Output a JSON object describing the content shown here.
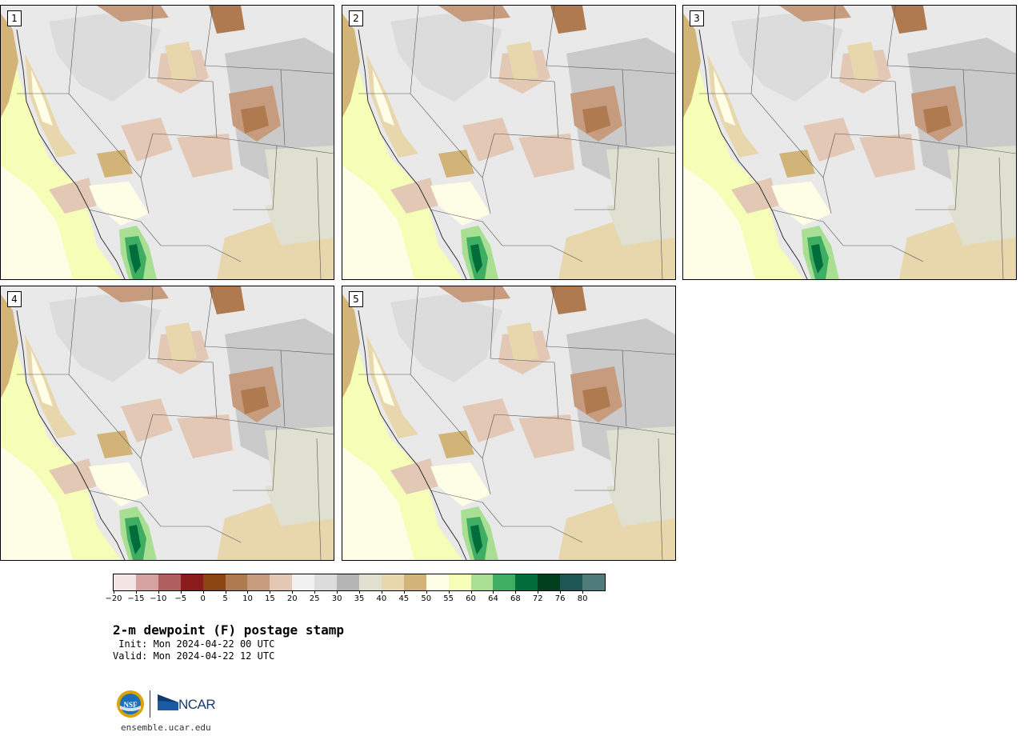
{
  "panels": [
    {
      "label": "1"
    },
    {
      "label": "2"
    },
    {
      "label": "3"
    },
    {
      "label": "4"
    },
    {
      "label": "5"
    }
  ],
  "colorbar": {
    "colors": [
      "#f4e4e4",
      "#d7a2a2",
      "#b15e5e",
      "#8b1a1a",
      "#8b4513",
      "#b07a50",
      "#c79c7e",
      "#e3c9b5",
      "#f1f1f1",
      "#dcdcdc",
      "#b5b5b5",
      "#e0e0d1",
      "#e8d7ad",
      "#d3b478",
      "#fefee6",
      "#f6fdb6",
      "#a9df93",
      "#3fae62",
      "#006d3a",
      "#00401f",
      "#1f5656",
      "#4f7b7b"
    ],
    "tick_labels": [
      "−20",
      "−15",
      "−10",
      "−5",
      "0",
      "5",
      "10",
      "15",
      "20",
      "25",
      "30",
      "35",
      "40",
      "45",
      "50",
      "55",
      "60",
      "64",
      "68",
      "72",
      "76",
      "80"
    ]
  },
  "title": "2-m dewpoint (F) postage stamp",
  "init_line": " Init: Mon 2024-04-22 00 UTC",
  "valid_line": "Valid: Mon 2024-04-22 12 UTC",
  "logos": {
    "nsf_text": "NSF",
    "ncar_text": "NCAR",
    "url": "ensemble.ucar.edu"
  }
}
